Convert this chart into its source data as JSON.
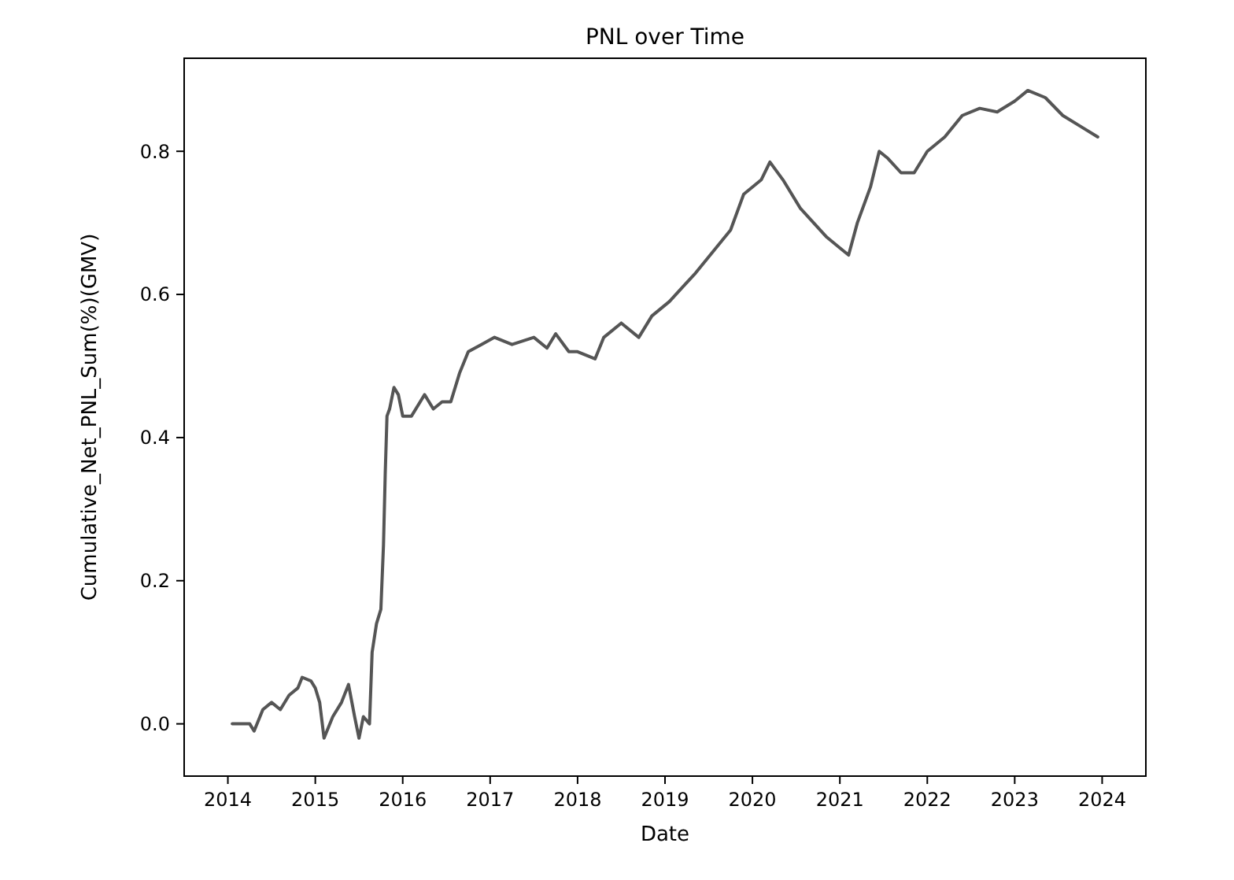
{
  "chart_data": {
    "type": "line",
    "title": "PNL over Time",
    "xlabel": "Date",
    "ylabel": "Cumulative_Net_PNL_Sum(%)(GMV)",
    "x": [
      2014.05,
      2014.25,
      2014.3,
      2014.4,
      2014.5,
      2014.6,
      2014.7,
      2014.8,
      2014.85,
      2014.95,
      2015.0,
      2015.05,
      2015.1,
      2015.2,
      2015.3,
      2015.38,
      2015.45,
      2015.5,
      2015.55,
      2015.62,
      2015.65,
      2015.7,
      2015.75,
      2015.78,
      2015.8,
      2015.82,
      2015.85,
      2015.9,
      2015.95,
      2016.0,
      2016.1,
      2016.25,
      2016.35,
      2016.45,
      2016.55,
      2016.65,
      2016.75,
      2016.9,
      2017.05,
      2017.25,
      2017.5,
      2017.65,
      2017.75,
      2017.9,
      2018.0,
      2018.2,
      2018.3,
      2018.5,
      2018.7,
      2018.85,
      2019.05,
      2019.2,
      2019.35,
      2019.55,
      2019.75,
      2019.9,
      2020.1,
      2020.2,
      2020.35,
      2020.55,
      2020.7,
      2020.85,
      2021.0,
      2021.1,
      2021.2,
      2021.35,
      2021.45,
      2021.55,
      2021.7,
      2021.85,
      2022.0,
      2022.2,
      2022.4,
      2022.6,
      2022.8,
      2023.0,
      2023.15,
      2023.35,
      2023.55,
      2023.75,
      2023.95
    ],
    "series": [
      {
        "color": "#555555",
        "values": [
          0,
          0,
          -0.01,
          0.02,
          0.03,
          0.02,
          0.04,
          0.05,
          0.065,
          0.06,
          0.05,
          0.03,
          -0.02,
          0.01,
          0.03,
          0.055,
          0.01,
          -0.02,
          0.01,
          0,
          0.1,
          0.14,
          0.16,
          0.25,
          0.35,
          0.43,
          0.44,
          0.47,
          0.46,
          0.43,
          0.43,
          0.46,
          0.44,
          0.45,
          0.45,
          0.49,
          0.52,
          0.53,
          0.54,
          0.53,
          0.54,
          0.525,
          0.545,
          0.52,
          0.52,
          0.51,
          0.54,
          0.56,
          0.54,
          0.57,
          0.59,
          0.61,
          0.63,
          0.66,
          0.69,
          0.74,
          0.76,
          0.785,
          0.76,
          0.72,
          0.7,
          0.68,
          0.665,
          0.655,
          0.7,
          0.75,
          0.8,
          0.79,
          0.77,
          0.77,
          0.8,
          0.82,
          0.85,
          0.86,
          0.855,
          0.87,
          0.885,
          0.875,
          0.85,
          0.835,
          0.82
        ]
      }
    ],
    "xlim": [
      2013.5,
      2024.5
    ],
    "xticks": [
      2014,
      2015,
      2016,
      2017,
      2018,
      2019,
      2020,
      2021,
      2022,
      2023,
      2024
    ],
    "ylim": [
      -0.073,
      0.93
    ],
    "yticks": [
      {
        "value": 0,
        "label": "0.0"
      },
      {
        "value": 0.2,
        "label": "0.2"
      },
      {
        "value": 0.4,
        "label": "0.4"
      },
      {
        "value": 0.6,
        "label": "0.6"
      },
      {
        "value": 0.8,
        "label": "0.8"
      }
    ],
    "marker": "none",
    "line_style": "solid"
  }
}
